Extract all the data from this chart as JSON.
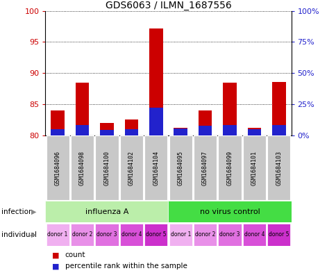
{
  "title": "GDS6063 / ILMN_1687556",
  "samples": [
    "GSM1684096",
    "GSM1684098",
    "GSM1684100",
    "GSM1684102",
    "GSM1684104",
    "GSM1684095",
    "GSM1684097",
    "GSM1684099",
    "GSM1684101",
    "GSM1684103"
  ],
  "count_values": [
    84.0,
    88.5,
    82.0,
    82.5,
    97.2,
    81.2,
    84.0,
    88.5,
    81.2,
    88.6
  ],
  "percentile_values": [
    5.0,
    8.0,
    4.0,
    4.5,
    22.0,
    5.5,
    7.5,
    8.0,
    4.5,
    8.0
  ],
  "y_min": 80,
  "y_max": 100,
  "y_ticks_left": [
    80,
    85,
    90,
    95,
    100
  ],
  "y_ticks_right": [
    0,
    25,
    50,
    75,
    100
  ],
  "infection_groups": [
    {
      "label": "influenza A",
      "start": 0,
      "end": 5,
      "color": "#BBEEAA"
    },
    {
      "label": "no virus control",
      "start": 5,
      "end": 10,
      "color": "#44DD44"
    }
  ],
  "individual_donors": [
    "donor 1",
    "donor 2",
    "donor 3",
    "donor 4",
    "donor 5",
    "donor 1",
    "donor 2",
    "donor 3",
    "donor 4",
    "donor 5"
  ],
  "donor_colors": [
    "#F0B0F0",
    "#E890E8",
    "#E070E0",
    "#D850D8",
    "#CC30CC",
    "#F0B0F0",
    "#E890E8",
    "#E070E0",
    "#D850D8",
    "#CC30CC"
  ],
  "bar_color_red": "#CC0000",
  "bar_color_blue": "#2222CC",
  "bar_width": 0.55,
  "sample_bg_color": "#C8C8C8",
  "left_label_color": "#CC0000",
  "right_label_color": "#2222CC",
  "fig_bg": "#FFFFFF"
}
